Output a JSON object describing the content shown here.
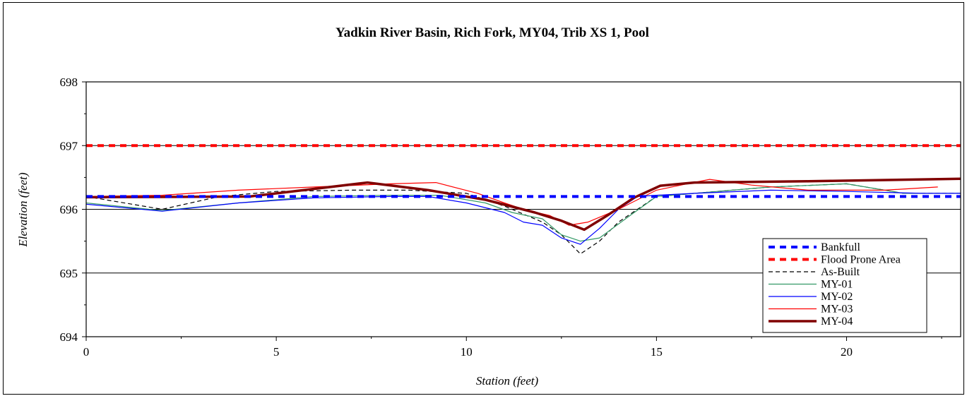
{
  "chart_data": {
    "type": "line",
    "title": "Yadkin River Basin, Rich Fork, MY04, Trib XS 1, Pool",
    "xlabel": "Station (feet)",
    "ylabel": "Elevation (feet)",
    "xlim": [
      0,
      23
    ],
    "ylim": [
      694,
      698
    ],
    "x_ticks": [
      "0",
      "5",
      "10",
      "15",
      "20"
    ],
    "y_ticks": [
      "694",
      "695",
      "696",
      "697",
      "698"
    ],
    "grid": "horizontal major",
    "legend_position": "bottom-right",
    "series": [
      {
        "name": "Bankfull",
        "color": "#0000ff",
        "style": "dashed-thick",
        "points": [
          [
            0,
            696.2
          ],
          [
            23,
            696.2
          ]
        ]
      },
      {
        "name": "Flood Prone Area",
        "color": "#ff0000",
        "style": "dashed-thick",
        "points": [
          [
            0,
            697.0
          ],
          [
            23,
            697.0
          ]
        ]
      },
      {
        "name": "As-Built",
        "color": "#000000",
        "style": "dashed",
        "points": [
          [
            0,
            696.2
          ],
          [
            2,
            696.0
          ],
          [
            3.5,
            696.2
          ],
          [
            5,
            696.28
          ],
          [
            7,
            696.3
          ],
          [
            8.5,
            696.3
          ],
          [
            10,
            696.25
          ],
          [
            11,
            696.05
          ],
          [
            12,
            695.8
          ],
          [
            12.5,
            695.6
          ],
          [
            13,
            695.3
          ],
          [
            13.5,
            695.5
          ],
          [
            14,
            695.8
          ],
          [
            15,
            696.2
          ],
          [
            16,
            696.25
          ],
          [
            18,
            696.35
          ],
          [
            20,
            696.4
          ],
          [
            21.5,
            696.25
          ],
          [
            23,
            696.25
          ]
        ]
      },
      {
        "name": "MY-01",
        "color": "#339966",
        "style": "solid-thin",
        "points": [
          [
            0,
            696.1
          ],
          [
            2,
            695.98
          ],
          [
            4,
            696.1
          ],
          [
            6,
            696.2
          ],
          [
            8,
            696.22
          ],
          [
            9.3,
            696.22
          ],
          [
            10.5,
            696.1
          ],
          [
            11.2,
            695.95
          ],
          [
            12,
            695.85
          ],
          [
            12.5,
            695.6
          ],
          [
            13,
            695.5
          ],
          [
            13.5,
            695.55
          ],
          [
            14.3,
            695.9
          ],
          [
            15,
            696.2
          ],
          [
            16,
            696.25
          ],
          [
            18,
            696.35
          ],
          [
            20,
            696.4
          ],
          [
            21.5,
            696.25
          ],
          [
            23,
            696.25
          ]
        ]
      },
      {
        "name": "MY-02",
        "color": "#0000ff",
        "style": "solid-thin",
        "points": [
          [
            0,
            696.08
          ],
          [
            2,
            695.97
          ],
          [
            4,
            696.1
          ],
          [
            6,
            696.18
          ],
          [
            8,
            696.2
          ],
          [
            9,
            696.2
          ],
          [
            10,
            696.1
          ],
          [
            11,
            695.95
          ],
          [
            11.5,
            695.8
          ],
          [
            12,
            695.75
          ],
          [
            12.5,
            695.55
          ],
          [
            13,
            695.45
          ],
          [
            13.5,
            695.7
          ],
          [
            14,
            696.0
          ],
          [
            14.5,
            696.2
          ],
          [
            15,
            696.22
          ],
          [
            16,
            696.25
          ],
          [
            18,
            696.3
          ],
          [
            20,
            696.28
          ],
          [
            22,
            696.25
          ],
          [
            23,
            696.25
          ]
        ]
      },
      {
        "name": "MY-03",
        "color": "#ff0000",
        "style": "solid-thin",
        "points": [
          [
            0,
            696.2
          ],
          [
            2,
            696.22
          ],
          [
            4,
            696.3
          ],
          [
            6,
            696.35
          ],
          [
            8,
            696.4
          ],
          [
            9.2,
            696.42
          ],
          [
            10.3,
            696.25
          ],
          [
            11,
            696.1
          ],
          [
            11.5,
            696.0
          ],
          [
            12.2,
            695.9
          ],
          [
            12.7,
            695.75
          ],
          [
            13.2,
            695.8
          ],
          [
            14,
            696.0
          ],
          [
            15,
            696.3
          ],
          [
            15.8,
            696.4
          ],
          [
            16.4,
            696.47
          ],
          [
            17.5,
            696.38
          ],
          [
            19,
            696.3
          ],
          [
            21,
            696.3
          ],
          [
            22.4,
            696.35
          ]
        ]
      },
      {
        "name": "MY-04",
        "color": "#800000",
        "style": "solid-thick",
        "points": [
          [
            0,
            696.19
          ],
          [
            4.3,
            696.2
          ],
          [
            7.4,
            696.42
          ],
          [
            9,
            696.3
          ],
          [
            10.5,
            696.15
          ],
          [
            11.8,
            695.95
          ],
          [
            12.5,
            695.82
          ],
          [
            13.1,
            695.68
          ],
          [
            13.7,
            695.9
          ],
          [
            14.4,
            696.18
          ],
          [
            15.1,
            696.37
          ],
          [
            16,
            696.42
          ],
          [
            19,
            696.44
          ],
          [
            23,
            696.48
          ]
        ]
      }
    ]
  }
}
